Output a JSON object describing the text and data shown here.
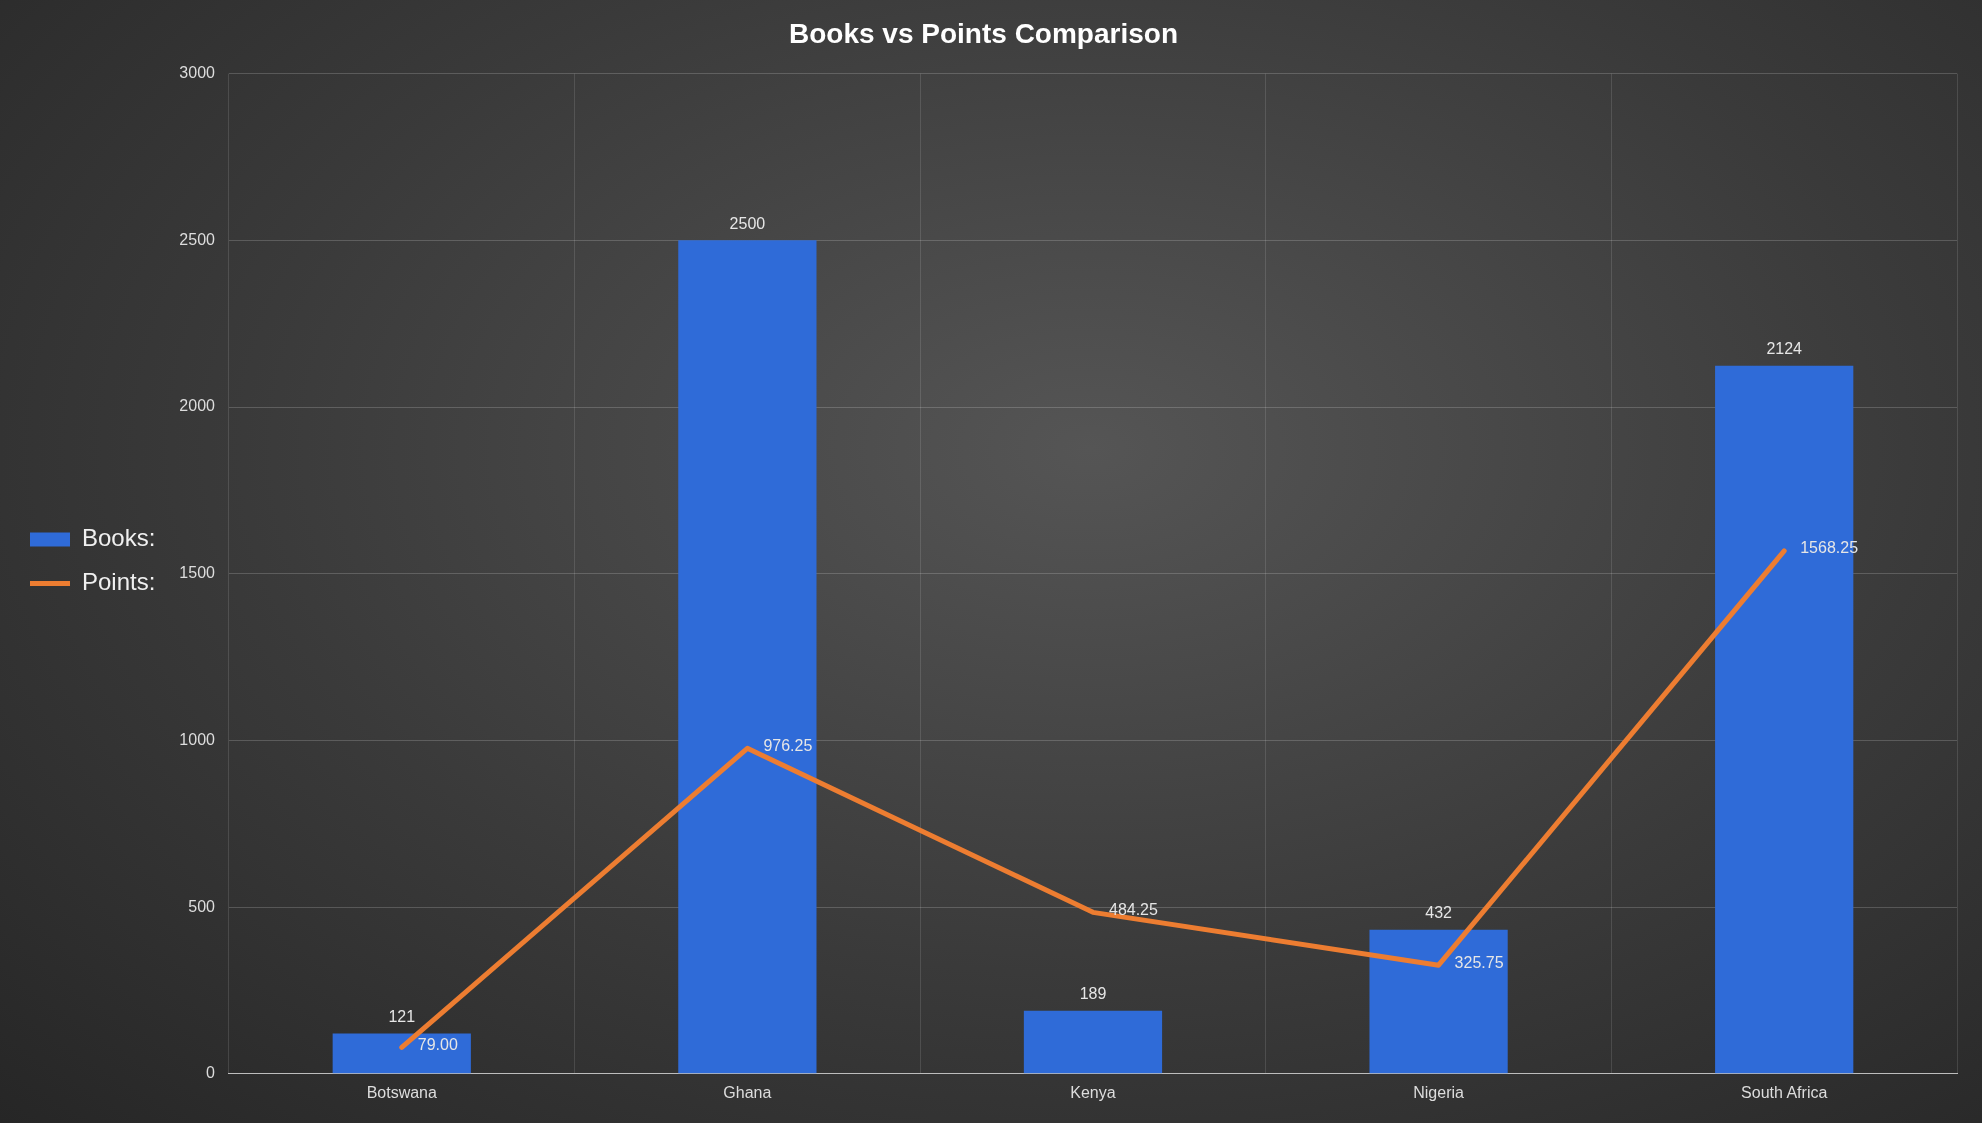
{
  "chart_data": {
    "type": "bar",
    "title": "Books vs Points Comparison",
    "categories": [
      "Botswana",
      "Ghana",
      "Kenya",
      "Nigeria",
      "South Africa"
    ],
    "series": [
      {
        "name": "Books:",
        "color": "#2f6bd8",
        "values": [
          121,
          2500,
          189,
          432,
          2124
        ]
      },
      {
        "name": "Points:",
        "type": "line",
        "color": "#ed7d31",
        "values": [
          79.0,
          976.25,
          484.25,
          325.75,
          1568.25
        ],
        "value_labels": [
          "79.00",
          "976.25",
          "484.25",
          "325.75",
          "1568.25"
        ]
      }
    ],
    "ylim": [
      0,
      3000
    ],
    "yticks": [
      0,
      500,
      1000,
      1500,
      2000,
      2500,
      3000
    ],
    "grid": true,
    "legend": "left",
    "marker": "none",
    "data_labels": true
  }
}
